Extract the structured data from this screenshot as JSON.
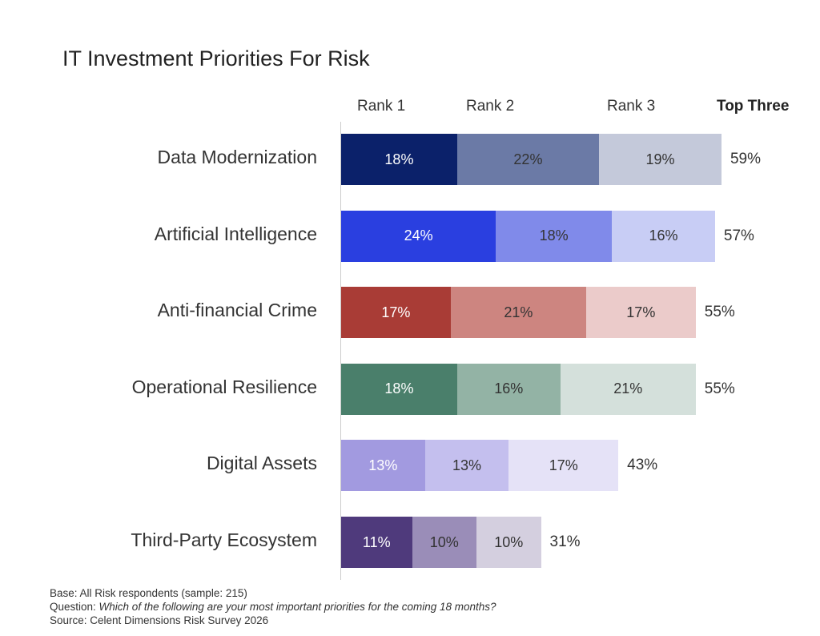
{
  "chart_data": {
    "type": "bar",
    "orientation": "horizontal-stacked",
    "title": "IT Investment Priorities For Risk",
    "series_labels": [
      "Rank 1",
      "Rank 2",
      "Rank 3"
    ],
    "total_label": "Top Three",
    "categories": [
      "Data Modernization",
      "Artificial Intelligence",
      "Anti-financial Crime",
      "Operational Resilience",
      "Digital Assets",
      "Third-Party Ecosystem"
    ],
    "series": [
      {
        "name": "Rank 1",
        "values": [
          18,
          24,
          17,
          18,
          13,
          11
        ]
      },
      {
        "name": "Rank 2",
        "values": [
          22,
          18,
          21,
          16,
          13,
          10
        ]
      },
      {
        "name": "Rank 3",
        "values": [
          19,
          16,
          17,
          21,
          17,
          10
        ]
      }
    ],
    "totals": [
      59,
      57,
      55,
      55,
      43,
      31
    ],
    "unit": "%",
    "colors": [
      [
        "#0b216a",
        "#6b7aa6",
        "#c4c9da"
      ],
      [
        "#2a3fe0",
        "#808aea",
        "#c8cdf5"
      ],
      [
        "#a93c36",
        "#cd8580",
        "#ebcbca"
      ],
      [
        "#4a7f6b",
        "#93b3a5",
        "#d4e0db"
      ],
      [
        "#a29ae0",
        "#c4bfee",
        "#e5e2f7"
      ],
      [
        "#4f3a7c",
        "#9a8db8",
        "#d4cfdf"
      ]
    ],
    "label_colors": [
      [
        "#ffffff",
        "#333333",
        "#333333"
      ],
      [
        "#ffffff",
        "#333333",
        "#333333"
      ],
      [
        "#ffffff",
        "#333333",
        "#333333"
      ],
      [
        "#ffffff",
        "#333333",
        "#333333"
      ],
      [
        "#ffffff",
        "#333333",
        "#333333"
      ],
      [
        "#ffffff",
        "#333333",
        "#333333"
      ]
    ]
  },
  "footnotes": {
    "base": "Base: All Risk respondents  (sample: 215)",
    "question_label": "Question: ",
    "question_text": "Which of the following are your most important priorities for the coming 18 months?",
    "source": "Source: Celent Dimensions Risk Survey 2026"
  }
}
